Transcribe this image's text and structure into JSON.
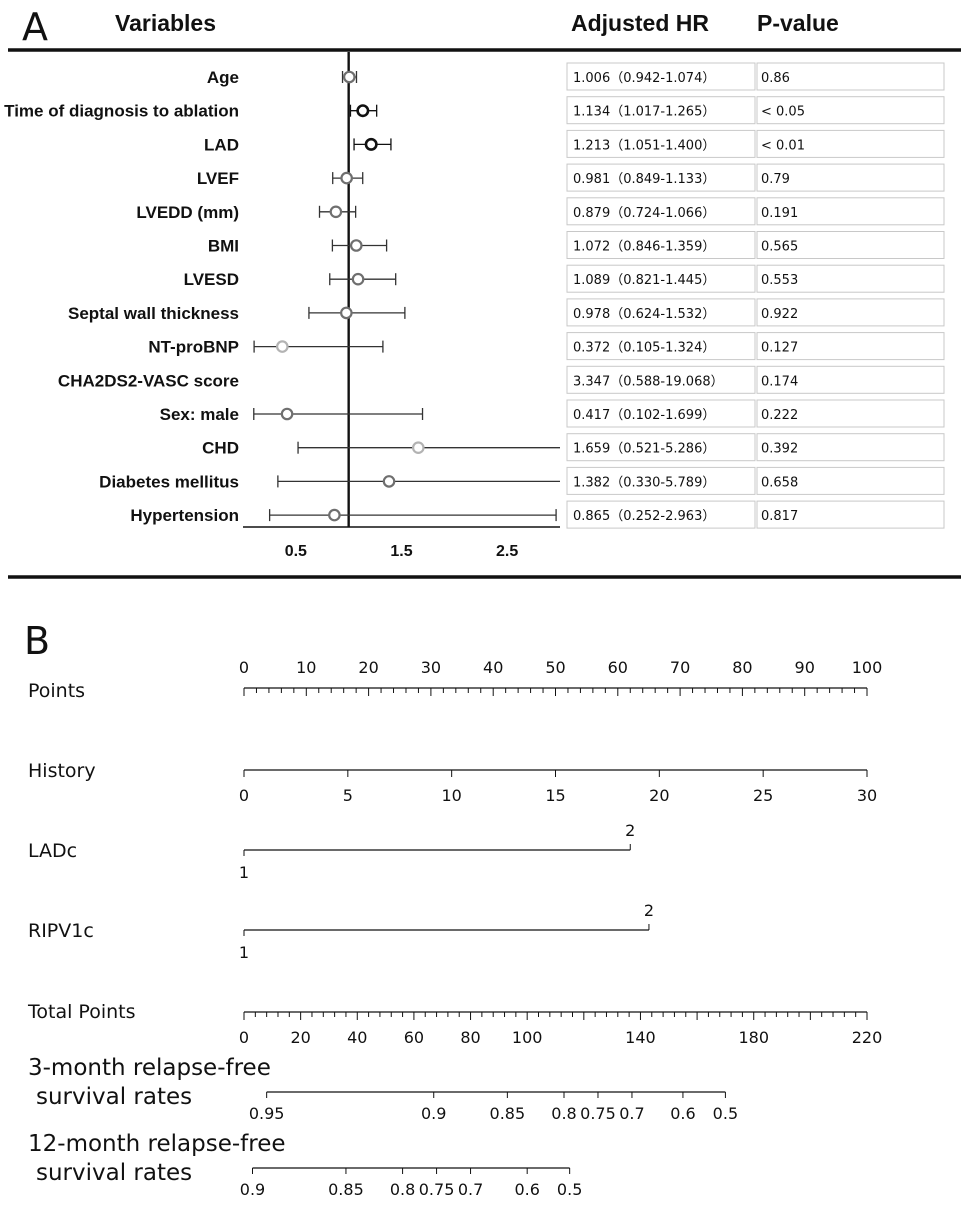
{
  "chart_data": [
    {
      "type": "forest",
      "panel_label": "A",
      "headers": {
        "variables": "Variables",
        "hr": "Adjusted HR",
        "p": "P-value"
      },
      "xlim": [
        0,
        3.0
      ],
      "reference_line": 1,
      "xticks": [
        0.5,
        1.5,
        2.5
      ],
      "xtick_labels": [
        "0.5",
        "1.5",
        "2.5"
      ],
      "rows": [
        {
          "label": "Age",
          "hr": 1.006,
          "lo": 0.942,
          "hi": 1.074,
          "hr_text": "1.006（0.942-1.074）",
          "p_text": "0.86",
          "marker": "gray"
        },
        {
          "label": "Time of diagnosis to ablation",
          "hr": 1.134,
          "lo": 1.017,
          "hi": 1.265,
          "hr_text": "1.134（1.017-1.265）",
          "p_text": "< 0.05",
          "marker": "black"
        },
        {
          "label": "LAD",
          "hr": 1.213,
          "lo": 1.051,
          "hi": 1.4,
          "hr_text": "1.213（1.051-1.400）",
          "p_text": "< 0.01",
          "marker": "black"
        },
        {
          "label": "LVEF",
          "hr": 0.981,
          "lo": 0.849,
          "hi": 1.133,
          "hr_text": "0.981（0.849-1.133）",
          "p_text": "0.79",
          "marker": "gray"
        },
        {
          "label": "LVEDD (mm)",
          "hr": 0.879,
          "lo": 0.724,
          "hi": 1.066,
          "hr_text": "0.879（0.724-1.066）",
          "p_text": "0.191",
          "marker": "gray"
        },
        {
          "label": "BMI",
          "hr": 1.072,
          "lo": 0.846,
          "hi": 1.359,
          "hr_text": "1.072（0.846-1.359）",
          "p_text": "0.565",
          "marker": "gray"
        },
        {
          "label": "LVESD",
          "hr": 1.089,
          "lo": 0.821,
          "hi": 1.445,
          "hr_text": "1.089（0.821-1.445）",
          "p_text": "0.553",
          "marker": "gray"
        },
        {
          "label": "Septal wall thickness",
          "hr": 0.978,
          "lo": 0.624,
          "hi": 1.532,
          "hr_text": "0.978（0.624-1.532）",
          "p_text": "0.922",
          "marker": "gray"
        },
        {
          "label": "NT-proBNP",
          "hr": 0.372,
          "lo": 0.105,
          "hi": 1.324,
          "hr_text": "0.372（0.105-1.324）",
          "p_text": "0.127",
          "marker": "light"
        },
        {
          "label": "CHA2DS2-VASC score",
          "hr": 3.347,
          "lo": 0.588,
          "hi": 19.068,
          "hr_text": "3.347（0.588-19.068）",
          "p_text": "0.174",
          "marker": "none"
        },
        {
          "label": "Sex: male",
          "hr": 0.417,
          "lo": 0.102,
          "hi": 1.699,
          "hr_text": "0.417（0.102-1.699）",
          "p_text": "0.222",
          "marker": "gray"
        },
        {
          "label": "CHD",
          "hr": 1.659,
          "lo": 0.521,
          "hi": 5.286,
          "hr_text": "1.659（0.521-5.286）",
          "p_text": "0.392",
          "marker": "light"
        },
        {
          "label": "Diabetes mellitus",
          "hr": 1.382,
          "lo": 0.33,
          "hi": 5.789,
          "hr_text": "1.382（0.330-5.789）",
          "p_text": "0.658",
          "marker": "gray"
        },
        {
          "label": "Hypertension",
          "hr": 0.865,
          "lo": 0.252,
          "hi": 2.963,
          "hr_text": "0.865（0.252-2.963）",
          "p_text": "0.817",
          "marker": "gray"
        }
      ]
    },
    {
      "type": "nomogram",
      "panel_label": "B",
      "scales": [
        {
          "label": "Points",
          "kind": "points",
          "min": 0,
          "max": 100,
          "ticks": [
            0,
            10,
            20,
            30,
            40,
            50,
            60,
            70,
            80,
            90,
            100
          ],
          "minor_step": 2
        },
        {
          "label": "History",
          "kind": "linear",
          "min": 0,
          "max": 30,
          "points_max": 100,
          "ticks": [
            0,
            5,
            10,
            15,
            20,
            25,
            30
          ]
        },
        {
          "label": "LADc",
          "kind": "categorical",
          "levels": [
            {
              "value": "1",
              "points": 0
            },
            {
              "value": "2",
              "points": 62
            }
          ]
        },
        {
          "label": "RIPV1c",
          "kind": "categorical",
          "levels": [
            {
              "value": "1",
              "points": 0
            },
            {
              "value": "2",
              "points": 65
            }
          ]
        },
        {
          "label": "Total Points",
          "kind": "total",
          "min": 0,
          "max": 220,
          "ticks": [
            0,
            20,
            40,
            60,
            80,
            100,
            140,
            180,
            220
          ],
          "minor_step": 4
        },
        {
          "label": "3-month relapse-free\nsurvival rates",
          "kind": "probability",
          "ticks": [
            {
              "value": "0.95",
              "total": 8
            },
            {
              "value": "0.9",
              "total": 67
            },
            {
              "value": "0.85",
              "total": 93
            },
            {
              "value": "0.8",
              "total": 113
            },
            {
              "value": "0.75",
              "total": 125
            },
            {
              "value": "0.7",
              "total": 137
            },
            {
              "value": "0.6",
              "total": 155
            },
            {
              "value": "0.5",
              "total": 170
            }
          ]
        },
        {
          "label": "12-month relapse-free\nsurvival rates",
          "kind": "probability",
          "ticks": [
            {
              "value": "0.9",
              "total": 3
            },
            {
              "value": "0.85",
              "total": 36
            },
            {
              "value": "0.8",
              "total": 56
            },
            {
              "value": "0.75",
              "total": 68
            },
            {
              "value": "0.7",
              "total": 80
            },
            {
              "value": "0.6",
              "total": 100
            },
            {
              "value": "0.5",
              "total": 115
            }
          ]
        }
      ]
    }
  ]
}
